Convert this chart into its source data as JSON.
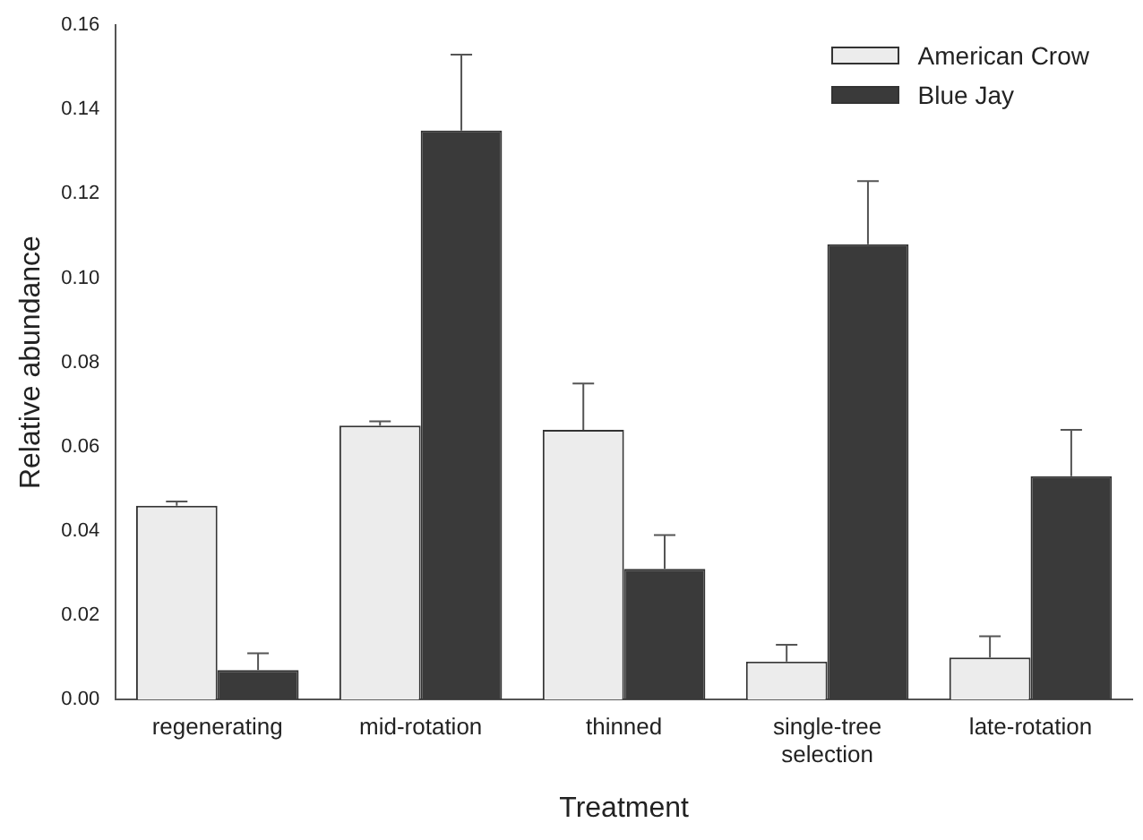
{
  "chart_data": {
    "type": "bar",
    "xlabel": "Treatment",
    "ylabel": "Relative abundance",
    "categories": [
      "regenerating",
      "mid-rotation",
      "thinned",
      "single-tree\nselection",
      "late-rotation"
    ],
    "series": [
      {
        "name": "American Crow",
        "color": "#ececec",
        "values": [
          0.046,
          0.065,
          0.064,
          0.009,
          0.01
        ],
        "errors": [
          [
            0.046,
            0.047
          ],
          [
            0.065,
            0.066
          ],
          [
            0.064,
            0.075
          ],
          [
            0.009,
            0.013
          ],
          [
            0.01,
            0.015
          ]
        ]
      },
      {
        "name": "Blue Jay",
        "color": "#3a3a3a",
        "values": [
          0.007,
          0.135,
          0.031,
          0.108,
          0.053
        ],
        "errors": [
          [
            0.007,
            0.011
          ],
          [
            0.135,
            0.153
          ],
          [
            0.031,
            0.039
          ],
          [
            0.108,
            0.123
          ],
          [
            0.053,
            0.064
          ]
        ]
      }
    ],
    "ylim": [
      0,
      0.16
    ],
    "yticks": [
      {
        "value": 0,
        "label": "0.00"
      },
      {
        "value": 0.02,
        "label": "0.02"
      },
      {
        "value": 0.04,
        "label": "0.04"
      },
      {
        "value": 0.06,
        "label": "0.06"
      },
      {
        "value": 0.08,
        "label": "0.08"
      },
      {
        "value": 0.1,
        "label": "0.10"
      },
      {
        "value": 0.12,
        "label": "0.12"
      },
      {
        "value": 0.14,
        "label": "0.14"
      },
      {
        "value": 0.16,
        "label": "0.16"
      }
    ],
    "grid": false,
    "legend": "top right"
  }
}
